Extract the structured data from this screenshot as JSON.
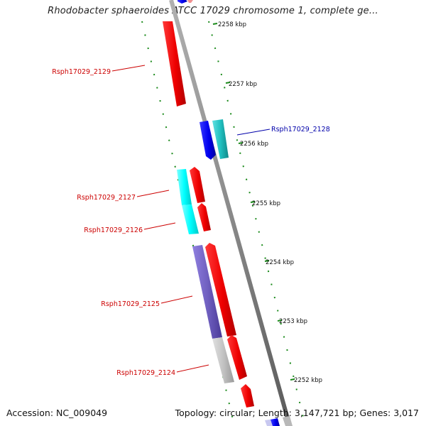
{
  "title": "Rhodobacter sphaeroides ATCC 17029 chromosome 1, complete ge...",
  "footer": {
    "accession": "Accession: NC_009049",
    "summary": "Topology: circular; Length: 3,147,721 bp; Genes: 3,017"
  },
  "colors": {
    "forward_strand_gene": "#ff0000",
    "reverse_strand_gene": "#0000ff",
    "cyan_feature": "#00ffff",
    "teal_feature": "#20c0c0",
    "purple_feature": "#7060c0",
    "gray_feature": "#bdbdbd",
    "backbone": "#8a8a8a",
    "tick": "#1a8a1a",
    "label_red": "#cc0000",
    "label_blue": "#0000aa"
  },
  "ticks": [
    "2258 kbp",
    "2257 kbp",
    "2256 kbp",
    "2255 kbp",
    "2254 kbp",
    "2253 kbp",
    "2252 kbp"
  ],
  "gene_labels": [
    {
      "text": "Rsph17029_2129",
      "color": "red"
    },
    {
      "text": "Rsph17029_2128",
      "color": "blue"
    },
    {
      "text": "Rsph17029_2127",
      "color": "red"
    },
    {
      "text": "Rsph17029_2126",
      "color": "red"
    },
    {
      "text": "Rsph17029_2125",
      "color": "red"
    },
    {
      "text": "Rsph17029_2124",
      "color": "red"
    }
  ]
}
